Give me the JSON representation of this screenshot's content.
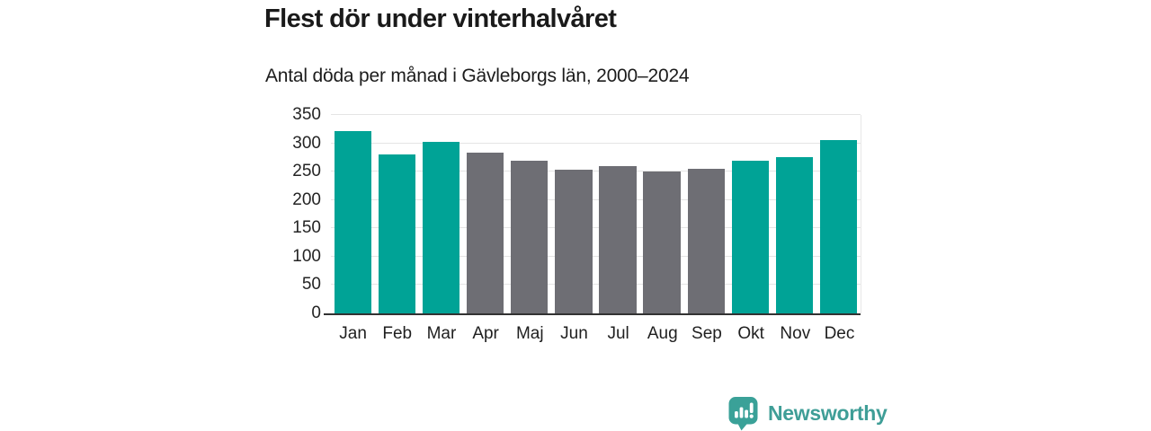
{
  "chart_data": {
    "type": "bar",
    "title": "Flest dör under vinterhalvåret",
    "subtitle": "Antal döda per månad i Gävleborgs län, 2000–2024",
    "categories": [
      "Jan",
      "Feb",
      "Mar",
      "Apr",
      "Maj",
      "Jun",
      "Jul",
      "Aug",
      "Sep",
      "Okt",
      "Nov",
      "Dec"
    ],
    "values": [
      322,
      280,
      302,
      283,
      270,
      253,
      260,
      251,
      255,
      269,
      276,
      305
    ],
    "bar_colors": [
      "#00a396",
      "#00a396",
      "#00a396",
      "#6e6e74",
      "#6e6e74",
      "#6e6e74",
      "#6e6e74",
      "#6e6e74",
      "#6e6e74",
      "#00a396",
      "#00a396",
      "#00a396"
    ],
    "colors": {
      "highlight": "#00a396",
      "muted": "#6e6e74",
      "gridline": "#e4e4e4",
      "axis": "#323232"
    },
    "xlabel": "",
    "ylabel": "",
    "ylim": [
      0,
      350
    ],
    "yticks": [
      0,
      50,
      100,
      150,
      200,
      250,
      300,
      350
    ],
    "grid": "horizontal",
    "legend": "none"
  },
  "branding": {
    "logo_text": "Newsworthy",
    "logo_color": "#3f9e97",
    "logo_icon": "bar-chart-speech-bubble"
  }
}
